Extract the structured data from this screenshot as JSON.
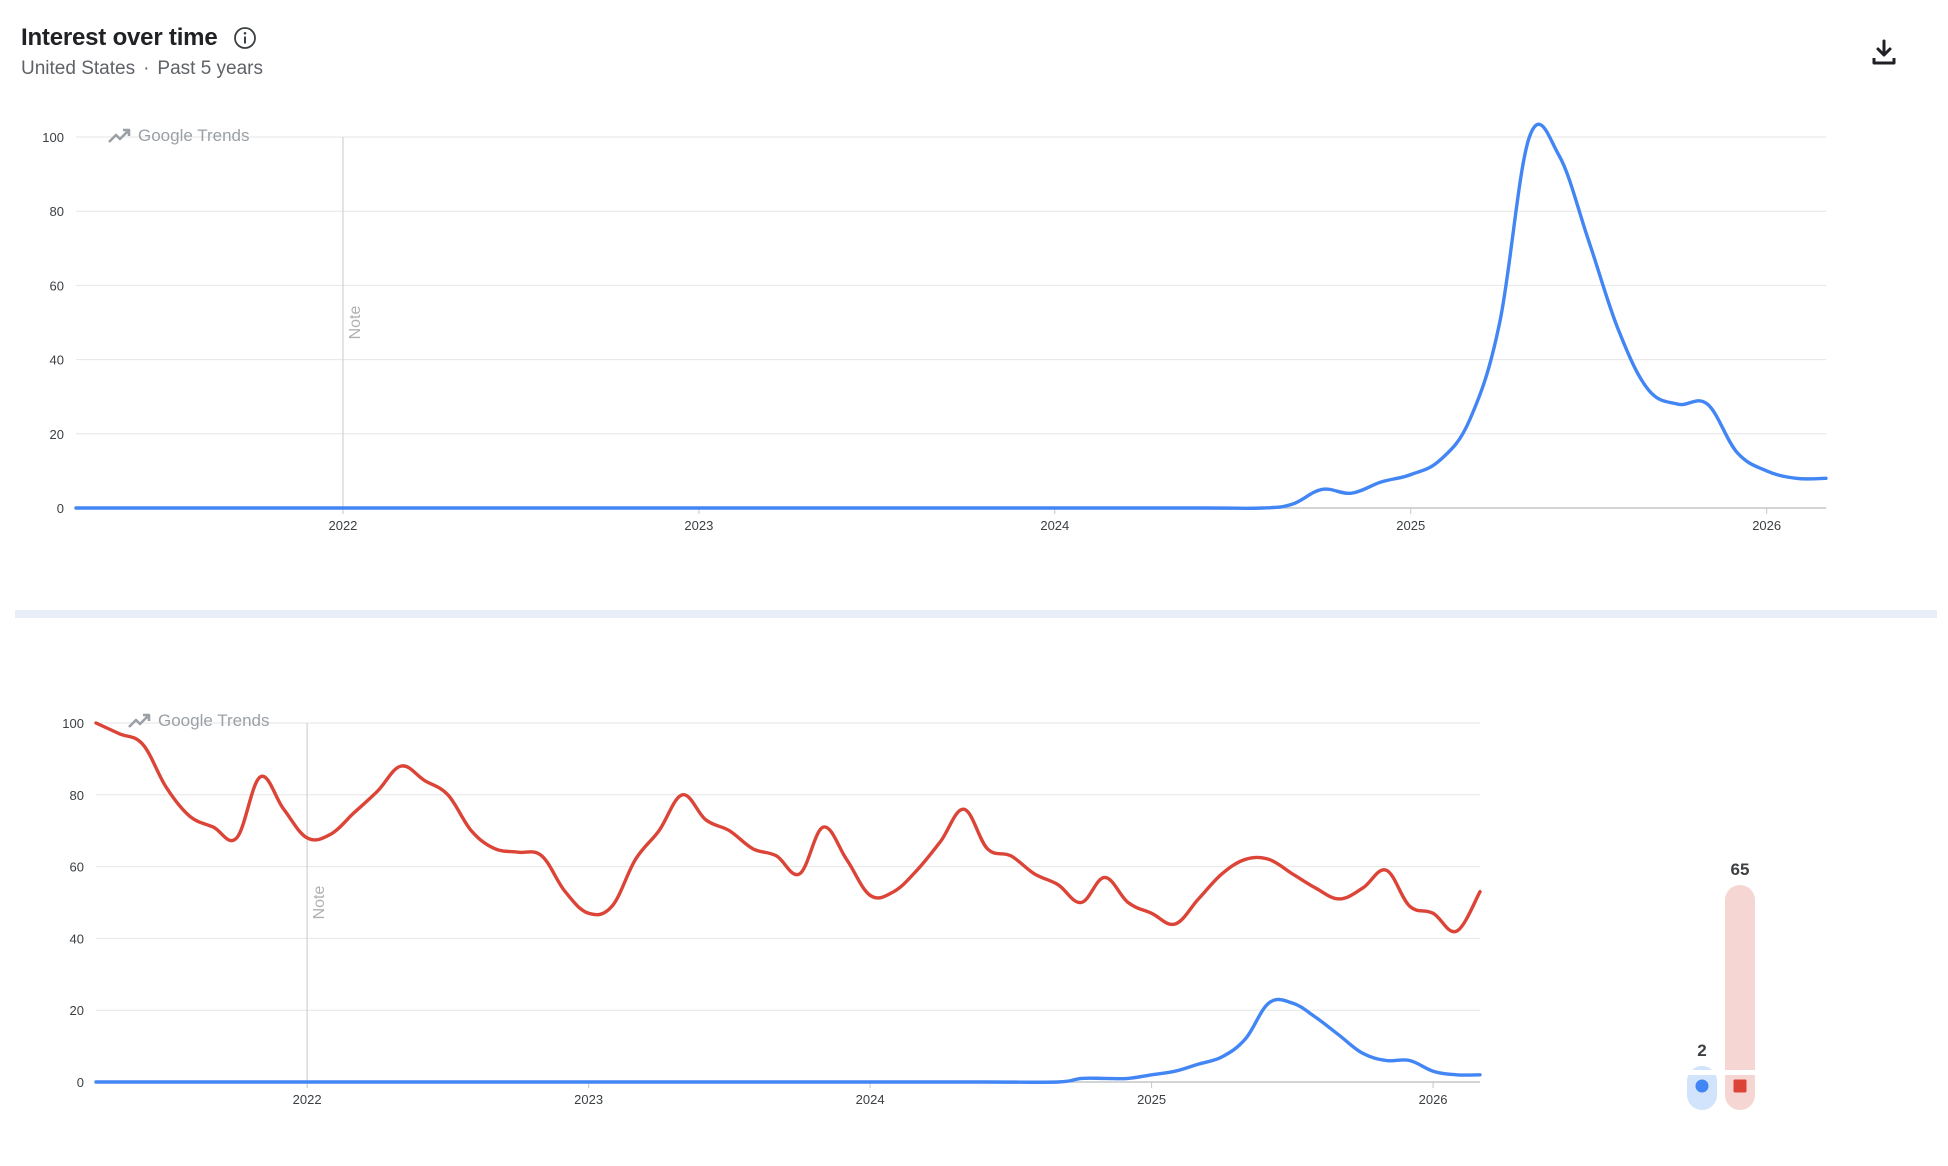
{
  "header": {
    "title": "Interest over time",
    "region": "United States",
    "separator": "·",
    "period": "Past 5 years"
  },
  "watermark": "Google Trends",
  "note_label": "Note",
  "colors": {
    "blue": "#4285f4",
    "red": "#db4437",
    "grid": "#e6e6e6",
    "axis_text": "#3c4043"
  },
  "icons": {
    "info": "info-circle-icon",
    "download": "download-icon",
    "trends": "trending-up-icon"
  },
  "chart_data": [
    {
      "type": "line",
      "ylim": [
        0,
        100
      ],
      "y_ticks": [
        0,
        20,
        40,
        60,
        80,
        100
      ],
      "x_ticks": [
        "2022",
        "2023",
        "2024",
        "2025",
        "2026"
      ],
      "xlim": [
        "2021-04",
        "2026-03"
      ],
      "note_at": "2022-01",
      "series": [
        {
          "color": "#4285f4",
          "x": [
            "2021-04",
            "2021-07",
            "2021-10",
            "2022-01",
            "2022-06",
            "2023-01",
            "2023-06",
            "2024-01",
            "2024-06",
            "2024-08",
            "2024-09",
            "2024-10",
            "2024-11",
            "2024-12",
            "2025-01",
            "2025-02",
            "2025-03",
            "2025-04",
            "2025-05",
            "2025-06",
            "2025-07",
            "2025-08",
            "2025-09",
            "2025-10",
            "2025-11",
            "2025-12",
            "2026-01",
            "2026-02",
            "2026-03"
          ],
          "values": [
            0,
            0,
            0,
            0,
            0,
            0,
            0,
            0,
            0,
            0,
            1,
            5,
            4,
            7,
            9,
            13,
            24,
            50,
            100,
            95,
            72,
            48,
            32,
            28,
            28,
            15,
            10,
            8,
            8
          ]
        }
      ]
    },
    {
      "type": "line",
      "ylim": [
        0,
        100
      ],
      "y_ticks": [
        0,
        20,
        40,
        60,
        80,
        100
      ],
      "x_ticks": [
        "2022",
        "2023",
        "2024",
        "2025",
        "2026"
      ],
      "xlim": [
        "2021-04",
        "2026-03"
      ],
      "note_at": "2022-01",
      "series": [
        {
          "color": "#db4437",
          "x": [
            "2021-04",
            "2021-05",
            "2021-06",
            "2021-07",
            "2021-08",
            "2021-09",
            "2021-10",
            "2021-11",
            "2021-12",
            "2022-01",
            "2022-02",
            "2022-03",
            "2022-04",
            "2022-05",
            "2022-06",
            "2022-07",
            "2022-08",
            "2022-09",
            "2022-10",
            "2022-11",
            "2022-12",
            "2023-01",
            "2023-02",
            "2023-03",
            "2023-04",
            "2023-05",
            "2023-06",
            "2023-07",
            "2023-08",
            "2023-09",
            "2023-10",
            "2023-11",
            "2023-12",
            "2024-01",
            "2024-02",
            "2024-03",
            "2024-04",
            "2024-05",
            "2024-06",
            "2024-07",
            "2024-08",
            "2024-09",
            "2024-10",
            "2024-11",
            "2024-12",
            "2025-01",
            "2025-02",
            "2025-03",
            "2025-04",
            "2025-05",
            "2025-06",
            "2025-07",
            "2025-08",
            "2025-09",
            "2025-10",
            "2025-11",
            "2025-12",
            "2026-01",
            "2026-02",
            "2026-03"
          ],
          "values": [
            100,
            97,
            94,
            82,
            74,
            71,
            68,
            85,
            76,
            68,
            69,
            75,
            81,
            88,
            84,
            80,
            70,
            65,
            64,
            63,
            53,
            47,
            49,
            62,
            70,
            80,
            73,
            70,
            65,
            63,
            58,
            71,
            62,
            52,
            53,
            59,
            67,
            76,
            65,
            63,
            58,
            55,
            50,
            57,
            50,
            47,
            44,
            51,
            58,
            62,
            62,
            58,
            54,
            51,
            54,
            59,
            49,
            47,
            42,
            53
          ]
        },
        {
          "color": "#4285f4",
          "x": [
            "2021-04",
            "2021-10",
            "2022-06",
            "2023-01",
            "2023-06",
            "2024-01",
            "2024-06",
            "2024-09",
            "2024-10",
            "2024-11",
            "2024-12",
            "2025-01",
            "2025-02",
            "2025-03",
            "2025-04",
            "2025-05",
            "2025-06",
            "2025-07",
            "2025-08",
            "2025-09",
            "2025-10",
            "2025-11",
            "2025-12",
            "2026-01",
            "2026-02",
            "2026-03"
          ],
          "values": [
            0,
            0,
            0,
            0,
            0,
            0,
            0,
            0,
            1,
            1,
            1,
            2,
            3,
            5,
            7,
            12,
            22,
            22,
            18,
            13,
            8,
            6,
            6,
            3,
            2,
            2
          ]
        }
      ]
    }
  ],
  "summary": {
    "items": [
      {
        "value": "2",
        "color": "#4285f4",
        "light": "#d2e3fc",
        "average": 2,
        "marker": "circle"
      },
      {
        "value": "65",
        "color": "#db4437",
        "light": "#f6d6d3",
        "average": 65,
        "marker": "square"
      }
    ]
  }
}
